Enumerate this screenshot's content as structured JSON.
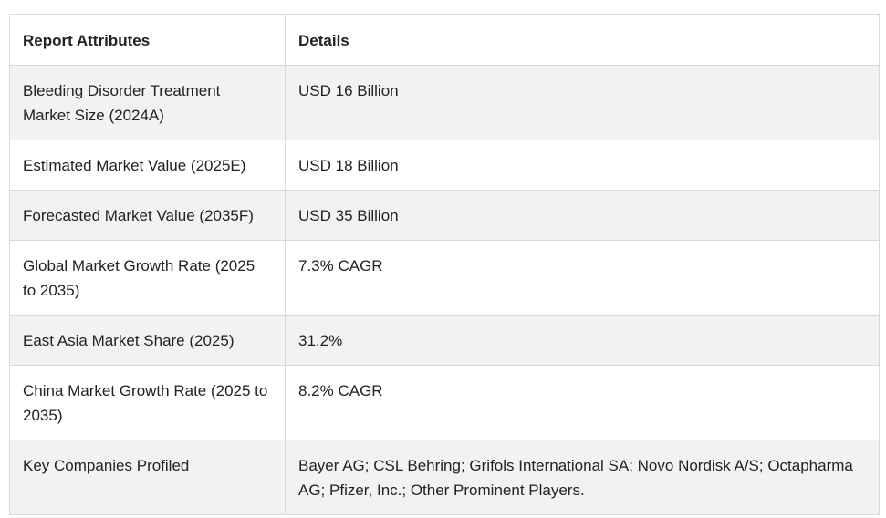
{
  "table": {
    "headers": [
      "Report Attributes",
      "Details"
    ],
    "rows": [
      {
        "attribute": "Bleeding Disorder Treatment Market Size (2024A)",
        "detail": "USD 16 Billion"
      },
      {
        "attribute": "Estimated Market Value (2025E)",
        "detail": "USD 18 Billion"
      },
      {
        "attribute": "Forecasted Market Value (2035F)",
        "detail": "USD 35 Billion"
      },
      {
        "attribute": "Global Market Growth Rate (2025 to 2035)",
        "detail": "7.3% CAGR"
      },
      {
        "attribute": "East Asia Market Share (2025)",
        "detail": "31.2%"
      },
      {
        "attribute": "China Market Growth Rate (2025 to 2035)",
        "detail": "8.2% CAGR"
      },
      {
        "attribute": "Key Companies Profiled",
        "detail": "Bayer AG; CSL Behring; Grifols International SA; Novo Nordisk A/S; Octapharma AG; Pfizer, Inc.; Other Prominent Players."
      }
    ]
  }
}
